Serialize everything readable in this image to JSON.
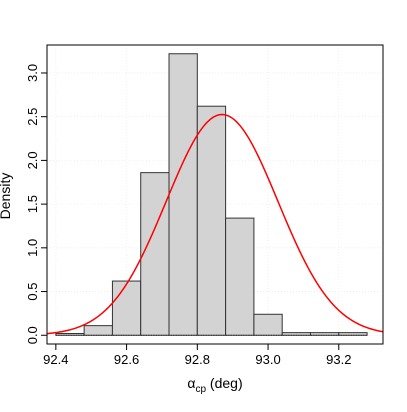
{
  "chart_data": {
    "type": "bar",
    "title": "",
    "xlabel_symbol": "α",
    "xlabel_subscript": "cp",
    "xlabel_suffix": " (deg)",
    "ylabel": "Density",
    "xlim": [
      92.375,
      93.325
    ],
    "ylim": [
      -0.1,
      3.32
    ],
    "x_ticks": [
      92.4,
      92.6,
      92.8,
      93.0,
      93.2
    ],
    "x_tick_labels": [
      "92.4",
      "92.6",
      "92.8",
      "93.0",
      "93.2"
    ],
    "y_ticks": [
      0.0,
      0.5,
      1.0,
      1.5,
      2.0,
      2.5,
      3.0
    ],
    "y_tick_labels": [
      "0.0",
      "0.5",
      "1.0",
      "1.5",
      "2.0",
      "2.5",
      "3.0"
    ],
    "grid": true,
    "histogram": {
      "bin_edges": [
        92.4,
        92.48,
        92.56,
        92.64,
        92.72,
        92.8,
        92.88,
        92.96,
        93.04,
        93.12,
        93.2,
        93.28
      ],
      "values": [
        0.02,
        0.11,
        0.62,
        1.86,
        3.22,
        2.62,
        1.34,
        0.24,
        0.03,
        0.03,
        0.03
      ],
      "fill": "#d3d3d3",
      "stroke": "#333333"
    },
    "density_curve": {
      "type": "normal",
      "mean": 92.87,
      "sd": 0.158,
      "color": "#ff0000"
    }
  }
}
